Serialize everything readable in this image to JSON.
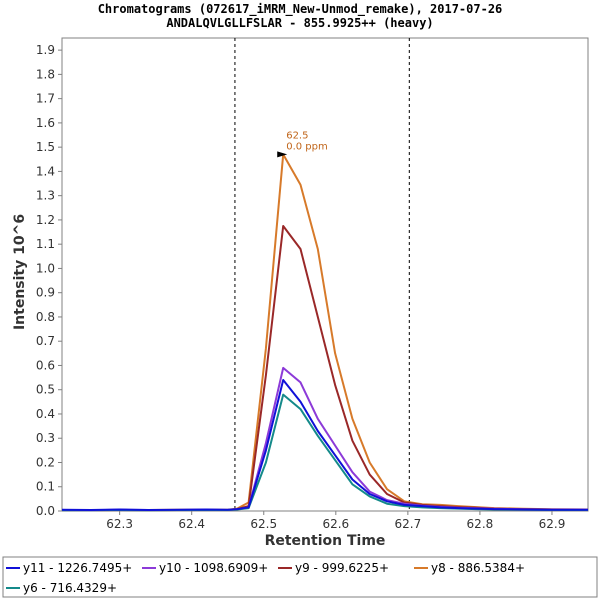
{
  "chart_data": {
    "type": "line",
    "title": "Chromatograms (072617_iMRM_New-Unmod_remake), 2017-07-26",
    "subtitle": "ANDALQVLGLLFSLAR - 855.9925++ (heavy)",
    "xlabel": "Retention Time",
    "ylabel": "Intensity 10^6",
    "xlim": [
      62.22,
      62.95
    ],
    "ylim": [
      0,
      1.95
    ],
    "xticks": [
      62.3,
      62.4,
      62.5,
      62.6,
      62.7,
      62.8,
      62.9
    ],
    "yticks": [
      0.0,
      0.1,
      0.2,
      0.3,
      0.4,
      0.5,
      0.6,
      0.7,
      0.8,
      0.9,
      1.0,
      1.1,
      1.2,
      1.3,
      1.4,
      1.5,
      1.6,
      1.7,
      1.8,
      1.9
    ],
    "integration_bounds": [
      62.46,
      62.702
    ],
    "annotation": {
      "x": 62.527,
      "y": 1.47,
      "label_rt": "62.5",
      "label_ppm": "0.0 ppm",
      "color": "#c0651a"
    },
    "x": [
      62.22,
      62.26,
      62.3,
      62.34,
      62.38,
      62.42,
      62.45,
      62.463,
      62.479,
      62.503,
      62.527,
      62.551,
      62.575,
      62.599,
      62.623,
      62.647,
      62.671,
      62.695,
      62.72,
      62.745,
      62.77,
      62.795,
      62.82,
      62.86,
      62.9,
      62.95
    ],
    "series": [
      {
        "name": "y11 - 1226.7495+",
        "color": "#1010d8",
        "values": [
          0.005,
          0.004,
          0.006,
          0.004,
          0.005,
          0.006,
          0.005,
          0.008,
          0.015,
          0.25,
          0.54,
          0.45,
          0.33,
          0.23,
          0.13,
          0.07,
          0.04,
          0.025,
          0.02,
          0.015,
          0.012,
          0.01,
          0.008,
          0.006,
          0.005,
          0.005
        ]
      },
      {
        "name": "y10 - 1098.6909+",
        "color": "#8c3ad8",
        "values": [
          0.004,
          0.003,
          0.005,
          0.004,
          0.004,
          0.005,
          0.004,
          0.007,
          0.014,
          0.28,
          0.59,
          0.53,
          0.38,
          0.27,
          0.16,
          0.08,
          0.045,
          0.03,
          0.022,
          0.017,
          0.013,
          0.011,
          0.009,
          0.007,
          0.006,
          0.005
        ]
      },
      {
        "name": "y9 - 999.6225+",
        "color": "#9a2828",
        "values": [
          0.003,
          0.003,
          0.004,
          0.003,
          0.004,
          0.004,
          0.004,
          0.008,
          0.02,
          0.56,
          1.175,
          1.08,
          0.8,
          0.52,
          0.29,
          0.15,
          0.07,
          0.035,
          0.025,
          0.02,
          0.016,
          0.013,
          0.01,
          0.008,
          0.006,
          0.005
        ]
      },
      {
        "name": "y8 - 886.5384+",
        "color": "#d77a2a",
        "values": [
          0.004,
          0.003,
          0.004,
          0.004,
          0.005,
          0.005,
          0.005,
          0.01,
          0.035,
          0.67,
          1.47,
          1.345,
          1.08,
          0.65,
          0.38,
          0.2,
          0.09,
          0.04,
          0.028,
          0.025,
          0.02,
          0.016,
          0.012,
          0.009,
          0.007,
          0.006
        ]
      },
      {
        "name": "y6 - 716.4329+",
        "color": "#148a8a",
        "values": [
          0.003,
          0.003,
          0.004,
          0.003,
          0.004,
          0.004,
          0.004,
          0.006,
          0.012,
          0.2,
          0.48,
          0.42,
          0.31,
          0.21,
          0.11,
          0.06,
          0.03,
          0.02,
          0.015,
          0.012,
          0.01,
          0.008,
          0.006,
          0.005,
          0.004,
          0.004
        ]
      }
    ]
  }
}
